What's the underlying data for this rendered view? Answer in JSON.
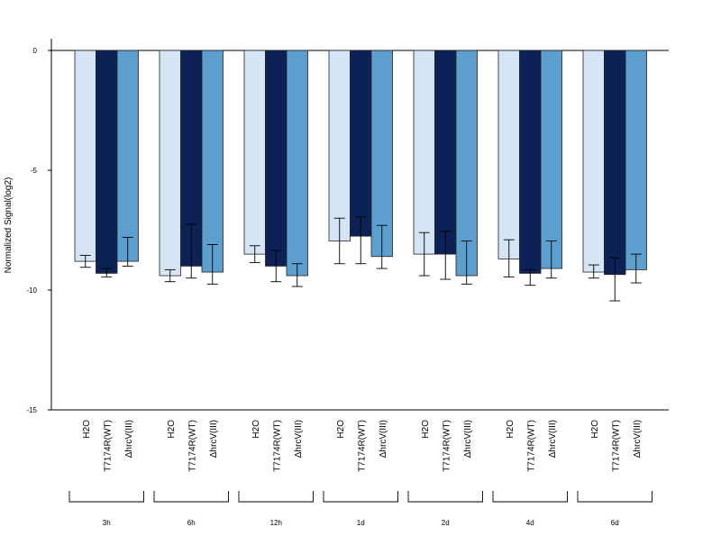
{
  "chart_data": {
    "type": "bar",
    "title": "",
    "xlabel": "",
    "ylabel": "Normalized Signal(log2)",
    "ylim": [
      -15,
      0.5
    ],
    "yticks": [
      0,
      -5,
      -10,
      -15
    ],
    "ytick_labels": [
      "0",
      "-5",
      "-10",
      "-15"
    ],
    "grid": false,
    "groups": [
      "3h",
      "6h",
      "12h",
      "1d",
      "2d",
      "4d",
      "6d"
    ],
    "bar_labels": [
      "H2O",
      "T7174R(WT)",
      "ΔhrcV(III)"
    ],
    "series": [
      {
        "key": "h2o",
        "color": "#d6e5f5",
        "values": [
          -8.8,
          -9.4,
          -8.5,
          -7.95,
          -8.5,
          -8.7,
          -9.25
        ],
        "err_upper": [
          -8.55,
          -9.15,
          -8.15,
          -7.0,
          -7.6,
          -7.9,
          -8.95
        ],
        "err_lower": [
          -9.05,
          -9.65,
          -8.85,
          -8.9,
          -9.4,
          -9.45,
          -9.5
        ]
      },
      {
        "key": "t7174r_wt",
        "color": "#0c2156",
        "values": [
          -9.3,
          -9.0,
          -9.0,
          -7.75,
          -8.5,
          -9.3,
          -9.35
        ],
        "err_upper": [
          -9.1,
          -7.25,
          -8.35,
          -6.95,
          -7.55,
          -9.15,
          -8.65
        ],
        "err_lower": [
          -9.45,
          -9.5,
          -9.65,
          -8.9,
          -9.55,
          -9.8,
          -10.45
        ]
      },
      {
        "key": "dhrcv_iii",
        "color": "#5c9fcf",
        "values": [
          -8.8,
          -9.25,
          -9.4,
          -8.6,
          -9.4,
          -9.1,
          -9.15
        ],
        "err_upper": [
          -7.8,
          -8.1,
          -8.9,
          -7.3,
          -7.95,
          -7.95,
          -8.5
        ],
        "err_lower": [
          -9.0,
          -9.75,
          -9.85,
          -9.1,
          -9.75,
          -9.5,
          -9.7
        ]
      }
    ]
  }
}
